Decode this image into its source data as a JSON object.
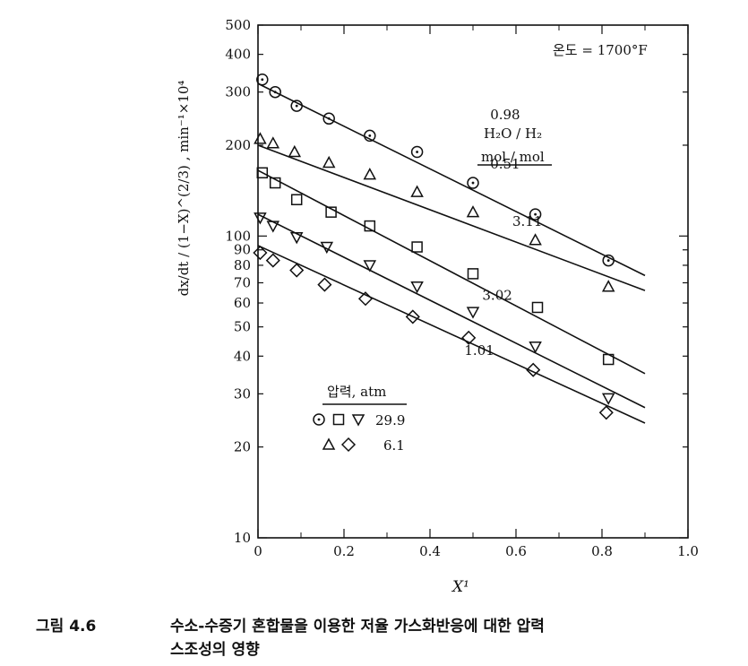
{
  "figure_caption": {
    "number": "그림 4.6",
    "line1": "수소-수증기 혼합물을 이용한 저율 가스화반응에 대한 압력",
    "line2": "스조성의 영향"
  },
  "chart_data": {
    "type": "scatter",
    "xlabel": "X¹",
    "ylabel": "dx/dt / (1−X)^(2/3) , min⁻¹×10⁴",
    "xlim": [
      0,
      1.0
    ],
    "ylim": [
      10,
      500
    ],
    "yscale": "log",
    "x_ticks": [
      "0",
      "0.2",
      "0.4",
      "0.6",
      "0.8",
      "1.0"
    ],
    "y_ticks": [
      "10",
      "20",
      "30",
      "40",
      "50",
      "60",
      "70",
      "80",
      "90",
      "100",
      "200",
      "300",
      "400",
      "500"
    ],
    "annotation": "온도 = 1700°F",
    "series_header": [
      "H₂O / H₂",
      "mol / mol"
    ],
    "pressure_legend": {
      "title": "압력, atm",
      "rows": [
        {
          "markers": [
            "circle",
            "square",
            "triangle-down"
          ],
          "value": "29.9"
        },
        {
          "markers": [
            "triangle-up",
            "diamond"
          ],
          "value": "6.1"
        }
      ]
    },
    "series": [
      {
        "name": "3.11",
        "marker": "circle",
        "x": [
          0.01,
          0.04,
          0.09,
          0.165,
          0.26,
          0.37,
          0.5,
          0.645,
          0.815
        ],
        "y": [
          330,
          300,
          270,
          245,
          215,
          190,
          150,
          118,
          83
        ],
        "fit": [
          [
            0,
            320
          ],
          [
            0.9,
            74
          ]
        ]
      },
      {
        "name": "3.02",
        "marker": "triangle-up",
        "x": [
          0.005,
          0.035,
          0.085,
          0.165,
          0.26,
          0.37,
          0.5,
          0.645,
          0.815
        ],
        "y": [
          210,
          203,
          190,
          175,
          160,
          140,
          120,
          97,
          68
        ],
        "fit": [
          [
            0,
            200
          ],
          [
            0.9,
            66
          ]
        ]
      },
      {
        "name": "0.98",
        "marker": "square",
        "x": [
          0.01,
          0.04,
          0.09,
          0.17,
          0.26,
          0.37,
          0.5,
          0.65,
          0.815
        ],
        "y": [
          162,
          150,
          132,
          120,
          108,
          92,
          75,
          58,
          39
        ],
        "fit": [
          [
            0,
            165
          ],
          [
            0.9,
            35
          ]
        ]
      },
      {
        "name": "0.51",
        "marker": "triangle-down",
        "x": [
          0.005,
          0.035,
          0.09,
          0.16,
          0.26,
          0.37,
          0.5,
          0.645,
          0.815
        ],
        "y": [
          115,
          108,
          99,
          92,
          80,
          68,
          56,
          43,
          29
        ],
        "fit": [
          [
            0,
            118
          ],
          [
            0.9,
            27
          ]
        ]
      },
      {
        "name": "1.01",
        "marker": "diamond",
        "x": [
          0.005,
          0.035,
          0.09,
          0.155,
          0.25,
          0.36,
          0.49,
          0.64,
          0.81
        ],
        "y": [
          88,
          83,
          77,
          69,
          62,
          54,
          46,
          36,
          26
        ],
        "fit": [
          [
            0,
            93
          ],
          [
            0.9,
            24
          ]
        ]
      }
    ],
    "label_anchor_y": {
      "3.11": 108,
      "3.02": 78,
      "0.98": 140,
      "0.51": 112,
      "1.01": 58
    }
  }
}
